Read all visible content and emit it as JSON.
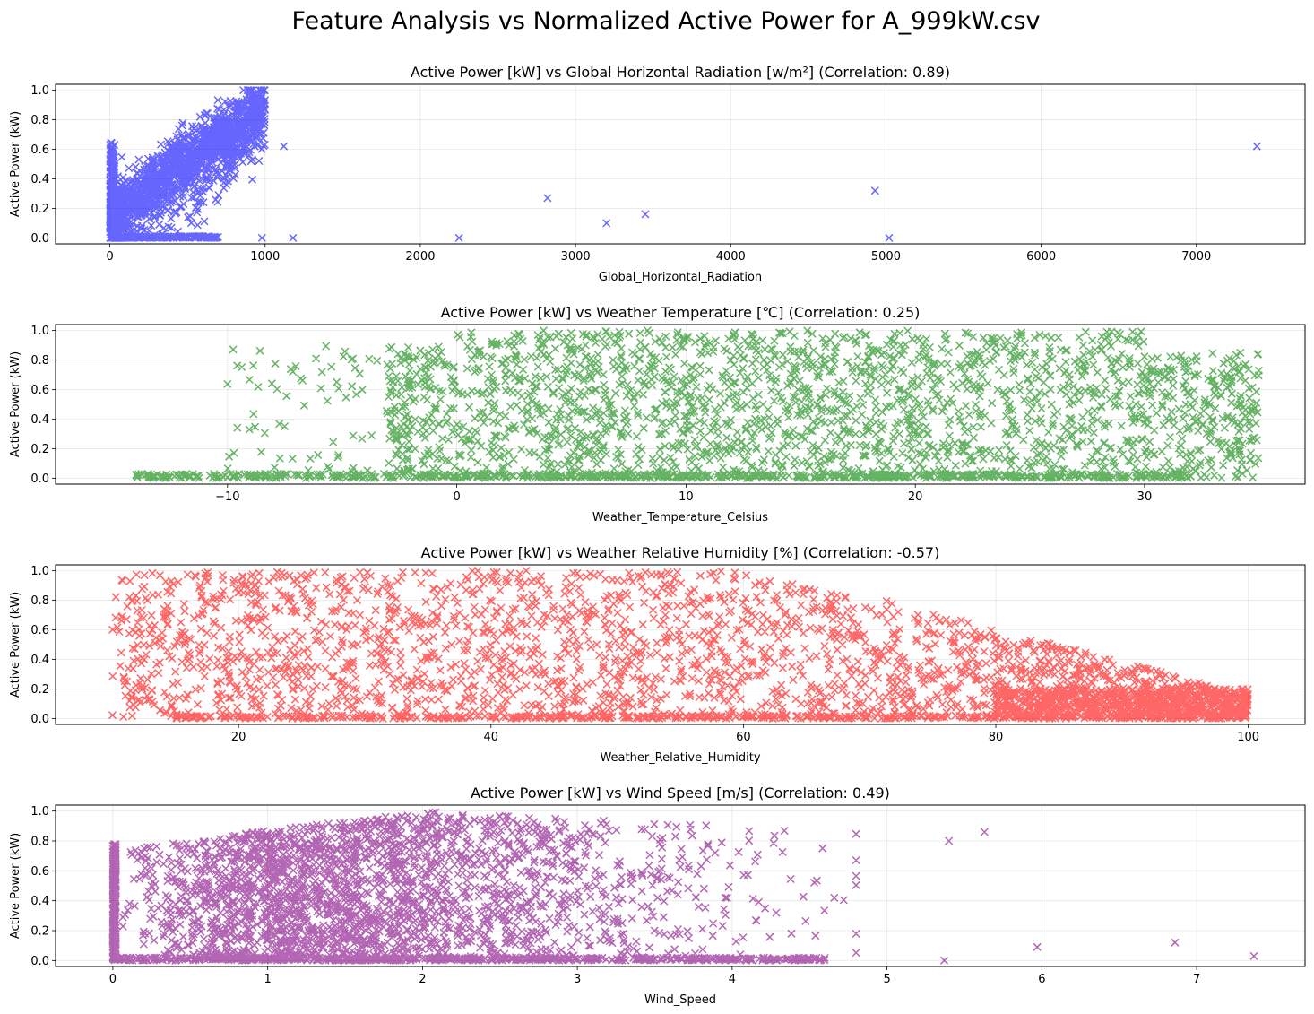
{
  "figure": {
    "title": "Feature Analysis vs Normalized Active Power for A_999kW.csv"
  },
  "chart_data": [
    {
      "type": "scatter",
      "title": "Active Power [kW] vs Global Horizontal Radiation [w/m²] (Correlation: 0.89)",
      "xlabel": "Global_Horizontal_Radiation",
      "ylabel": "Active Power (kW)",
      "xlim": [
        -350,
        7700
      ],
      "ylim": [
        -0.04,
        1.04
      ],
      "xticks": [
        0,
        1000,
        2000,
        3000,
        4000,
        5000,
        6000,
        7000
      ],
      "xtick_labels": [
        "0",
        "1000",
        "2000",
        "3000",
        "4000",
        "5000",
        "6000",
        "7000"
      ],
      "yticks": [
        0.0,
        0.2,
        0.4,
        0.6,
        0.8,
        1.0
      ],
      "ytick_labels": [
        "0.0",
        "0.2",
        "0.4",
        "0.6",
        "0.8",
        "1.0"
      ],
      "color": "#0000ff",
      "marker": "x",
      "grid": true,
      "outliers": [
        {
          "x": 2250,
          "y": 0.0
        },
        {
          "x": 2820,
          "y": 0.27
        },
        {
          "x": 3200,
          "y": 0.1
        },
        {
          "x": 3450,
          "y": 0.16
        },
        {
          "x": 4930,
          "y": 0.32
        },
        {
          "x": 5020,
          "y": 0.0
        },
        {
          "x": 7390,
          "y": 0.62
        },
        {
          "x": 1180,
          "y": 0.0
        },
        {
          "x": 980,
          "y": 0.0
        },
        {
          "x": 1120,
          "y": 0.62
        }
      ]
    },
    {
      "type": "scatter",
      "title": "Active Power [kW] vs Weather Temperature [℃] (Correlation: 0.25)",
      "xlabel": "Weather_Temperature_Celsius",
      "ylabel": "Active Power (kW)",
      "xlim": [
        -17.5,
        37.0
      ],
      "ylim": [
        -0.04,
        1.04
      ],
      "xticks": [
        -10,
        0,
        10,
        20,
        30
      ],
      "xtick_labels": [
        "−10",
        "0",
        "10",
        "20",
        "30"
      ],
      "yticks": [
        0.0,
        0.2,
        0.4,
        0.6,
        0.8,
        1.0
      ],
      "ytick_labels": [
        "0.0",
        "0.2",
        "0.4",
        "0.6",
        "0.8",
        "1.0"
      ],
      "color": "#008000",
      "marker": "x",
      "grid": true
    },
    {
      "type": "scatter",
      "title": "Active Power [kW] vs Weather Relative Humidity [%] (Correlation: -0.57)",
      "xlabel": "Weather_Relative_Humidity",
      "ylabel": "Active Power (kW)",
      "xlim": [
        5.5,
        104.5
      ],
      "ylim": [
        -0.04,
        1.04
      ],
      "xticks": [
        20,
        40,
        60,
        80,
        100
      ],
      "xtick_labels": [
        "20",
        "40",
        "60",
        "80",
        "100"
      ],
      "yticks": [
        0.0,
        0.2,
        0.4,
        0.6,
        0.8,
        1.0
      ],
      "ytick_labels": [
        "0.0",
        "0.2",
        "0.4",
        "0.6",
        "0.8",
        "1.0"
      ],
      "color": "#ff0000",
      "marker": "x",
      "grid": true
    },
    {
      "type": "scatter",
      "title": "Active Power [kW] vs Wind Speed [m/s] (Correlation: 0.49)",
      "xlabel": "Wind_Speed",
      "ylabel": "Active Power (kW)",
      "xlim": [
        -0.37,
        7.7
      ],
      "ylim": [
        -0.04,
        1.04
      ],
      "xticks": [
        0,
        1,
        2,
        3,
        4,
        5,
        6,
        7
      ],
      "xtick_labels": [
        "0",
        "1",
        "2",
        "3",
        "4",
        "5",
        "6",
        "7"
      ],
      "yticks": [
        0.0,
        0.2,
        0.4,
        0.6,
        0.8,
        1.0
      ],
      "ytick_labels": [
        "0.0",
        "0.2",
        "0.4",
        "0.6",
        "0.8",
        "1.0"
      ],
      "color": "#800080",
      "marker": "x",
      "grid": true,
      "outliers": [
        {
          "x": 5.63,
          "y": 0.86
        },
        {
          "x": 5.97,
          "y": 0.09
        },
        {
          "x": 6.86,
          "y": 0.12
        },
        {
          "x": 7.37,
          "y": 0.03
        },
        {
          "x": 5.4,
          "y": 0.8
        },
        {
          "x": 5.37,
          "y": 0.0
        }
      ]
    }
  ]
}
